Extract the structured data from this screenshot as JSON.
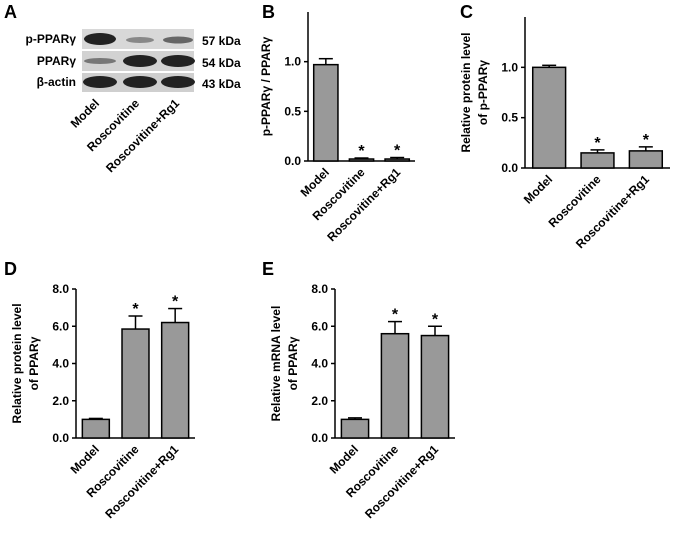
{
  "chart_data": [
    {
      "type": "bar",
      "panel": "B",
      "ylabel": [
        "p-PPARγ / PPARγ"
      ],
      "categories": [
        "Model",
        "Roscovitine",
        "Roscovitine+Rg1"
      ],
      "values": [
        0.97,
        0.02,
        0.02
      ],
      "errors": [
        0.06,
        0.01,
        0.015
      ],
      "significance": [
        null,
        "*",
        "*"
      ],
      "color": "#999999",
      "ylim": [
        0,
        1.5
      ],
      "yticks": [
        {
          "value": 0,
          "label": "0.0"
        },
        {
          "value": 0.5,
          "label": "0.5"
        },
        {
          "value": 1,
          "label": "1.0"
        }
      ]
    },
    {
      "type": "bar",
      "panel": "C",
      "ylabel": [
        "Relative protein level",
        "of p-PPARγ"
      ],
      "categories": [
        "Model",
        "Roscovitine",
        "Roscovitine+Rg1"
      ],
      "values": [
        1.0,
        0.15,
        0.17
      ],
      "errors": [
        0.02,
        0.03,
        0.04
      ],
      "significance": [
        null,
        "*",
        "*"
      ],
      "color": "#999999",
      "ylim": [
        0,
        1.5
      ],
      "yticks": [
        {
          "value": 0,
          "label": "0.0"
        },
        {
          "value": 0.5,
          "label": "0.5"
        },
        {
          "value": 1,
          "label": "1.0"
        }
      ]
    },
    {
      "type": "bar",
      "panel": "D",
      "ylabel": [
        "Relative protein level",
        "of PPARγ"
      ],
      "categories": [
        "Model",
        "Roscovitine",
        "Roscovitine+Rg1"
      ],
      "values": [
        1.0,
        5.85,
        6.2
      ],
      "errors": [
        0.05,
        0.7,
        0.75
      ],
      "significance": [
        null,
        "*",
        "*"
      ],
      "color": "#999999",
      "ylim": [
        0,
        8
      ],
      "yticks": [
        {
          "value": 0,
          "label": "0.0"
        },
        {
          "value": 2,
          "label": "2.0"
        },
        {
          "value": 4,
          "label": "4.0"
        },
        {
          "value": 6,
          "label": "6.0"
        },
        {
          "value": 8,
          "label": "8.0"
        }
      ]
    },
    {
      "type": "bar",
      "panel": "E",
      "ylabel": [
        "Relative mRNA level",
        "of PPARγ"
      ],
      "categories": [
        "Model",
        "Roscovitine",
        "Roscovitine+Rg1"
      ],
      "values": [
        1.0,
        5.6,
        5.5
      ],
      "errors": [
        0.08,
        0.65,
        0.5
      ],
      "significance": [
        null,
        "*",
        "*"
      ],
      "color": "#999999",
      "ylim": [
        0,
        8
      ],
      "yticks": [
        {
          "value": 0,
          "label": "0.0"
        },
        {
          "value": 2,
          "label": "2.0"
        },
        {
          "value": 4,
          "label": "4.0"
        },
        {
          "value": 6,
          "label": "6.0"
        },
        {
          "value": 8,
          "label": "8.0"
        }
      ]
    }
  ],
  "blot": {
    "panel": "A",
    "rows": [
      {
        "label": "p-PPARγ",
        "size": "57 kDa"
      },
      {
        "label": "PPARγ",
        "size": "54 kDa"
      },
      {
        "label": "β-actin",
        "size": "43 kDa"
      }
    ],
    "lanes": [
      "Model",
      "Roscovitine",
      "Roscovitine+Rg1"
    ]
  }
}
